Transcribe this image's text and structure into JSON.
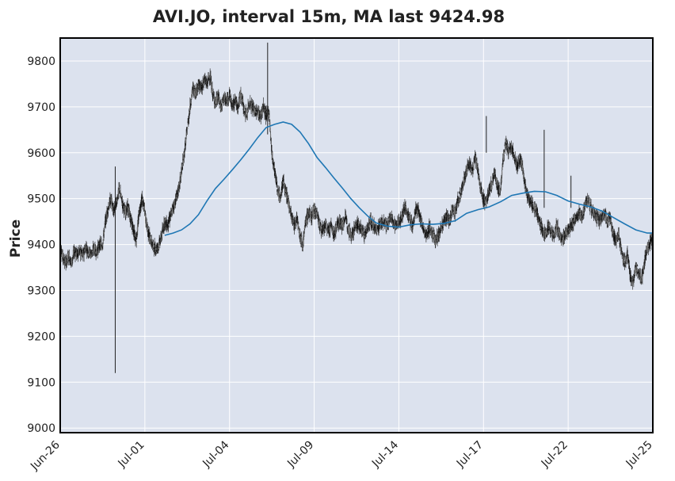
{
  "chart_data": {
    "type": "candlestick",
    "title": "AVI.JO, interval 15m, MA last 9424.98",
    "xlabel": "",
    "ylabel": "Price",
    "ylim": [
      8990,
      9850
    ],
    "grid": true,
    "y_ticks": [
      9000,
      9100,
      9200,
      9300,
      9400,
      9500,
      9600,
      9700,
      9800
    ],
    "x_ticks": [
      {
        "label": "Jun-26",
        "pos": 0
      },
      {
        "label": "Jul-01",
        "pos": 3
      },
      {
        "label": "Jul-04",
        "pos": 6
      },
      {
        "label": "Jul-09",
        "pos": 9
      },
      {
        "label": "Jul-14",
        "pos": 12
      },
      {
        "label": "Jul-17",
        "pos": 15
      },
      {
        "label": "Jul-22",
        "pos": 18
      },
      {
        "label": "Jul-25",
        "pos": 21
      }
    ],
    "x_range": [
      0,
      21
    ],
    "series": [
      {
        "name": "price",
        "type": "candlestick",
        "values": [
          [
            0.0,
            9400
          ],
          [
            0.1,
            9370
          ],
          [
            0.2,
            9360
          ],
          [
            0.3,
            9375
          ],
          [
            0.4,
            9360
          ],
          [
            0.5,
            9385
          ],
          [
            0.6,
            9380
          ],
          [
            0.7,
            9385
          ],
          [
            0.8,
            9375
          ],
          [
            0.9,
            9395
          ],
          [
            1.0,
            9385
          ],
          [
            1.1,
            9380
          ],
          [
            1.2,
            9390
          ],
          [
            1.3,
            9385
          ],
          [
            1.4,
            9400
          ],
          [
            1.5,
            9400
          ],
          [
            1.6,
            9450
          ],
          [
            1.7,
            9480
          ],
          [
            1.8,
            9500
          ],
          [
            1.9,
            9470
          ],
          [
            2.0,
            9495
          ],
          [
            2.1,
            9520
          ],
          [
            2.2,
            9490
          ],
          [
            2.3,
            9470
          ],
          [
            2.4,
            9480
          ],
          [
            2.5,
            9455
          ],
          [
            2.6,
            9430
          ],
          [
            2.7,
            9410
          ],
          [
            2.8,
            9470
          ],
          [
            2.9,
            9500
          ],
          [
            3.0,
            9470
          ],
          [
            3.1,
            9430
          ],
          [
            3.2,
            9410
          ],
          [
            3.3,
            9395
          ],
          [
            3.4,
            9390
          ],
          [
            3.5,
            9400
          ],
          [
            3.6,
            9420
          ],
          [
            3.7,
            9450
          ],
          [
            3.8,
            9440
          ],
          [
            3.9,
            9460
          ],
          [
            4.0,
            9480
          ],
          [
            4.1,
            9500
          ],
          [
            4.2,
            9520
          ],
          [
            4.3,
            9560
          ],
          [
            4.4,
            9600
          ],
          [
            4.5,
            9650
          ],
          [
            4.6,
            9700
          ],
          [
            4.7,
            9740
          ],
          [
            4.8,
            9730
          ],
          [
            4.9,
            9750
          ],
          [
            5.0,
            9740
          ],
          [
            5.1,
            9760
          ],
          [
            5.2,
            9750
          ],
          [
            5.3,
            9770
          ],
          [
            5.4,
            9730
          ],
          [
            5.5,
            9710
          ],
          [
            5.6,
            9720
          ],
          [
            5.7,
            9700
          ],
          [
            5.8,
            9720
          ],
          [
            5.9,
            9710
          ],
          [
            6.0,
            9730
          ],
          [
            6.1,
            9700
          ],
          [
            6.2,
            9715
          ],
          [
            6.3,
            9700
          ],
          [
            6.4,
            9730
          ],
          [
            6.5,
            9700
          ],
          [
            6.6,
            9680
          ],
          [
            6.7,
            9710
          ],
          [
            6.8,
            9700
          ],
          [
            6.9,
            9690
          ],
          [
            7.0,
            9690
          ],
          [
            7.1,
            9680
          ],
          [
            7.2,
            9700
          ],
          [
            7.3,
            9680
          ],
          [
            7.4,
            9690
          ],
          [
            7.5,
            9600
          ],
          [
            7.6,
            9560
          ],
          [
            7.7,
            9520
          ],
          [
            7.8,
            9500
          ],
          [
            7.9,
            9540
          ],
          [
            8.0,
            9510
          ],
          [
            8.1,
            9490
          ],
          [
            8.2,
            9460
          ],
          [
            8.3,
            9440
          ],
          [
            8.4,
            9460
          ],
          [
            8.5,
            9420
          ],
          [
            8.6,
            9400
          ],
          [
            8.7,
            9450
          ],
          [
            8.8,
            9470
          ],
          [
            8.9,
            9460
          ],
          [
            9.0,
            9475
          ],
          [
            9.1,
            9470
          ],
          [
            9.2,
            9440
          ],
          [
            9.3,
            9430
          ],
          [
            9.4,
            9440
          ],
          [
            9.5,
            9430
          ],
          [
            9.6,
            9440
          ],
          [
            9.7,
            9420
          ],
          [
            9.8,
            9440
          ],
          [
            9.9,
            9450
          ],
          [
            10.0,
            9440
          ],
          [
            10.1,
            9460
          ],
          [
            10.2,
            9440
          ],
          [
            10.3,
            9420
          ],
          [
            10.4,
            9430
          ],
          [
            10.5,
            9445
          ],
          [
            10.6,
            9440
          ],
          [
            10.7,
            9430
          ],
          [
            10.8,
            9420
          ],
          [
            10.9,
            9440
          ],
          [
            11.0,
            9450
          ],
          [
            11.1,
            9440
          ],
          [
            11.2,
            9430
          ],
          [
            11.3,
            9440
          ],
          [
            11.4,
            9450
          ],
          [
            11.5,
            9445
          ],
          [
            11.6,
            9440
          ],
          [
            11.7,
            9460
          ],
          [
            11.8,
            9450
          ],
          [
            11.9,
            9440
          ],
          [
            12.0,
            9450
          ],
          [
            12.1,
            9460
          ],
          [
            12.2,
            9480
          ],
          [
            12.3,
            9470
          ],
          [
            12.4,
            9450
          ],
          [
            12.5,
            9440
          ],
          [
            12.6,
            9480
          ],
          [
            12.7,
            9470
          ],
          [
            12.8,
            9450
          ],
          [
            12.9,
            9430
          ],
          [
            13.0,
            9420
          ],
          [
            13.1,
            9440
          ],
          [
            13.2,
            9420
          ],
          [
            13.3,
            9410
          ],
          [
            13.4,
            9420
          ],
          [
            13.5,
            9440
          ],
          [
            13.6,
            9450
          ],
          [
            13.7,
            9460
          ],
          [
            13.8,
            9450
          ],
          [
            13.9,
            9480
          ],
          [
            14.0,
            9470
          ],
          [
            14.1,
            9500
          ],
          [
            14.2,
            9510
          ],
          [
            14.3,
            9540
          ],
          [
            14.4,
            9560
          ],
          [
            14.5,
            9580
          ],
          [
            14.6,
            9560
          ],
          [
            14.7,
            9590
          ],
          [
            14.8,
            9560
          ],
          [
            14.9,
            9520
          ],
          [
            15.0,
            9500
          ],
          [
            15.1,
            9490
          ],
          [
            15.2,
            9520
          ],
          [
            15.3,
            9530
          ],
          [
            15.4,
            9560
          ],
          [
            15.5,
            9520
          ],
          [
            15.6,
            9520
          ],
          [
            15.7,
            9590
          ],
          [
            15.8,
            9620
          ],
          [
            15.9,
            9600
          ],
          [
            16.0,
            9610
          ],
          [
            16.1,
            9590
          ],
          [
            16.2,
            9570
          ],
          [
            16.3,
            9590
          ],
          [
            16.4,
            9560
          ],
          [
            16.5,
            9520
          ],
          [
            16.6,
            9500
          ],
          [
            16.7,
            9490
          ],
          [
            16.8,
            9480
          ],
          [
            16.9,
            9470
          ],
          [
            17.0,
            9450
          ],
          [
            17.1,
            9430
          ],
          [
            17.2,
            9420
          ],
          [
            17.3,
            9440
          ],
          [
            17.4,
            9430
          ],
          [
            17.5,
            9420
          ],
          [
            17.6,
            9440
          ],
          [
            17.7,
            9420
          ],
          [
            17.8,
            9410
          ],
          [
            17.9,
            9420
          ],
          [
            18.0,
            9430
          ],
          [
            18.1,
            9440
          ],
          [
            18.2,
            9450
          ],
          [
            18.3,
            9460
          ],
          [
            18.4,
            9470
          ],
          [
            18.5,
            9460
          ],
          [
            18.6,
            9490
          ],
          [
            18.7,
            9500
          ],
          [
            18.8,
            9480
          ],
          [
            18.9,
            9470
          ],
          [
            19.0,
            9460
          ],
          [
            19.1,
            9450
          ],
          [
            19.2,
            9460
          ],
          [
            19.3,
            9470
          ],
          [
            19.4,
            9450
          ],
          [
            19.5,
            9460
          ],
          [
            19.6,
            9420
          ],
          [
            19.7,
            9410
          ],
          [
            19.8,
            9420
          ],
          [
            19.9,
            9380
          ],
          [
            20.0,
            9360
          ],
          [
            20.1,
            9380
          ],
          [
            20.2,
            9330
          ],
          [
            20.3,
            9320
          ],
          [
            20.4,
            9350
          ],
          [
            20.5,
            9340
          ],
          [
            20.6,
            9320
          ],
          [
            20.7,
            9360
          ],
          [
            20.8,
            9390
          ],
          [
            20.9,
            9400
          ],
          [
            21.0,
            9410
          ]
        ],
        "extremes": [
          [
            1.95,
            9120,
            9570
          ],
          [
            7.35,
            9640,
            9840
          ],
          [
            15.1,
            9600,
            9680
          ],
          [
            17.15,
            9480,
            9650
          ],
          [
            18.1,
            9480,
            9550
          ]
        ]
      },
      {
        "name": "MA",
        "type": "line",
        "color": "#1f77b4",
        "values": [
          [
            3.7,
            9420
          ],
          [
            4.0,
            9425
          ],
          [
            4.3,
            9432
          ],
          [
            4.6,
            9445
          ],
          [
            4.9,
            9465
          ],
          [
            5.2,
            9495
          ],
          [
            5.5,
            9522
          ],
          [
            5.8,
            9542
          ],
          [
            6.1,
            9563
          ],
          [
            6.4,
            9585
          ],
          [
            6.7,
            9608
          ],
          [
            7.0,
            9633
          ],
          [
            7.3,
            9655
          ],
          [
            7.6,
            9662
          ],
          [
            7.9,
            9667
          ],
          [
            8.2,
            9662
          ],
          [
            8.5,
            9645
          ],
          [
            8.8,
            9620
          ],
          [
            9.1,
            9590
          ],
          [
            9.4,
            9568
          ],
          [
            9.7,
            9545
          ],
          [
            10.0,
            9523
          ],
          [
            10.3,
            9500
          ],
          [
            10.6,
            9480
          ],
          [
            10.9,
            9462
          ],
          [
            11.2,
            9447
          ],
          [
            11.6,
            9440
          ],
          [
            12.0,
            9438
          ],
          [
            12.4,
            9443
          ],
          [
            12.8,
            9445
          ],
          [
            13.2,
            9444
          ],
          [
            13.6,
            9446
          ],
          [
            14.0,
            9452
          ],
          [
            14.4,
            9468
          ],
          [
            14.8,
            9476
          ],
          [
            15.2,
            9482
          ],
          [
            15.6,
            9493
          ],
          [
            16.0,
            9507
          ],
          [
            16.4,
            9512
          ],
          [
            16.8,
            9516
          ],
          [
            17.2,
            9515
          ],
          [
            17.6,
            9507
          ],
          [
            18.0,
            9495
          ],
          [
            18.4,
            9488
          ],
          [
            18.8,
            9482
          ],
          [
            19.2,
            9473
          ],
          [
            19.6,
            9459
          ],
          [
            20.0,
            9445
          ],
          [
            20.4,
            9432
          ],
          [
            20.8,
            9425
          ],
          [
            21.0,
            9425
          ]
        ]
      }
    ]
  }
}
